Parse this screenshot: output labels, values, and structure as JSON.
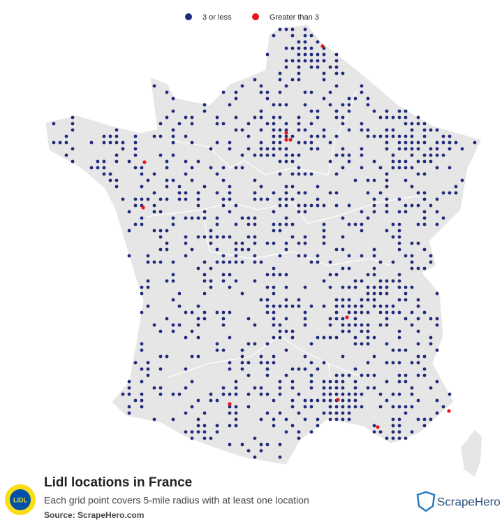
{
  "legend": [
    {
      "label": "3 or less",
      "color": "#202a7c"
    },
    {
      "label": "Greater than 3",
      "color": "#e8141b"
    }
  ],
  "title": "Lidl locations in France",
  "subtitle": "Each grid point covers 5-mile radius with at least one location",
  "source": "Source: ScrapeHero.com",
  "logo": "LIDL",
  "brand": "ScrapeHero"
}
